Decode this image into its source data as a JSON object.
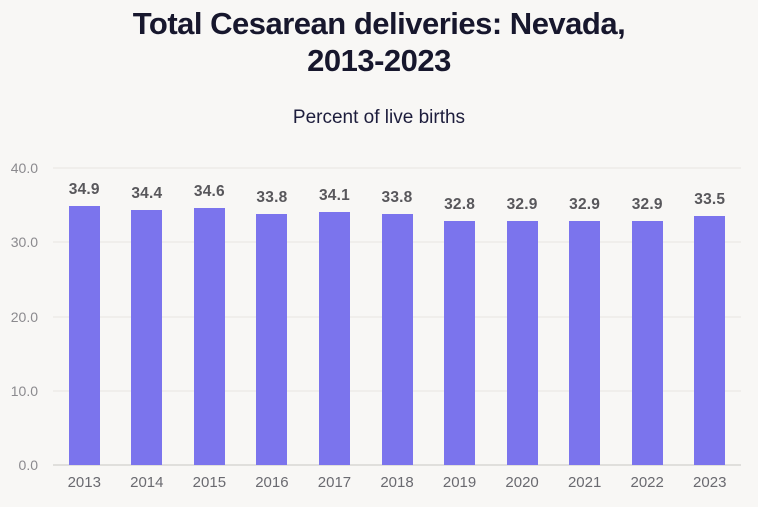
{
  "page": {
    "background": "#f8f7f5"
  },
  "header": {
    "title": "Total Cesarean deliveries: Nevada, 2013-2023",
    "subtitle": "Percent of live births"
  },
  "chart_data": {
    "type": "bar",
    "title": "Total Cesarean deliveries: Nevada, 2013-2023",
    "subtitle": "Percent of live births",
    "categories": [
      "2013",
      "2014",
      "2015",
      "2016",
      "2017",
      "2018",
      "2019",
      "2020",
      "2021",
      "2022",
      "2023"
    ],
    "values": [
      34.9,
      34.4,
      34.6,
      33.8,
      34.1,
      33.8,
      32.8,
      32.9,
      32.9,
      32.9,
      33.5
    ],
    "value_labels": [
      "34.9",
      "34.4",
      "34.6",
      "33.8",
      "34.1",
      "33.8",
      "32.8",
      "32.9",
      "32.9",
      "32.9",
      "33.5"
    ],
    "xlabel": "",
    "ylabel": "",
    "ylim": [
      0,
      40
    ],
    "yticks": [
      40,
      30,
      20,
      10,
      0
    ],
    "ytick_labels": [
      "40.0",
      "30.0",
      "20.0",
      "10.0",
      "0.0"
    ],
    "grid": true,
    "legend": false,
    "bar_color": "#7b74ed",
    "colors": {
      "background": "#f8f7f5",
      "title": "#17172d",
      "subtitle": "#1d1d3c",
      "bar": "#7b74ed",
      "value_label": "#58575b",
      "x_tick_label": "#6a6a70",
      "y_tick_label": "#8b8a8e",
      "gridline": "#e7e5e1",
      "axis_line": "#c9c7c3"
    }
  }
}
